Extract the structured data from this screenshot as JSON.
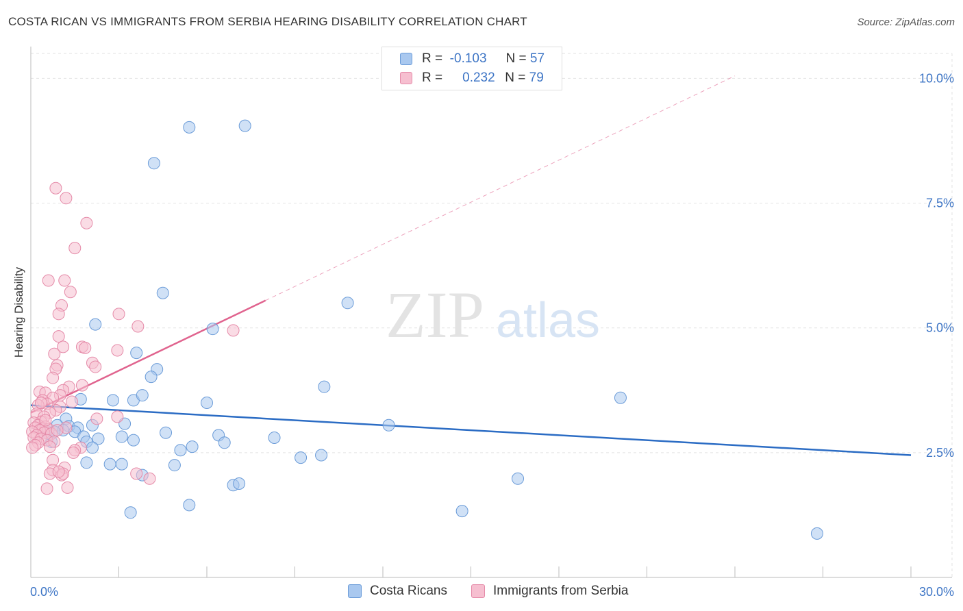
{
  "title": "COSTA RICAN VS IMMIGRANTS FROM SERBIA HEARING DISABILITY CORRELATION CHART",
  "source": "Source: ZipAtlas.com",
  "watermark": {
    "zip": "ZIP",
    "atlas": "atlas"
  },
  "legend_top": [
    {
      "r_label": "R =",
      "r_value": "-0.103",
      "n_label": "N =",
      "n_value": "57",
      "color": "#a9c8ef",
      "stroke": "#6a9bd8"
    },
    {
      "r_label": "R =",
      "r_value": "0.232",
      "n_label": "N =",
      "n_value": "79",
      "color": "#f6bfd0",
      "stroke": "#e58aa8"
    }
  ],
  "chart_data": {
    "type": "scatter",
    "title": "COSTA RICAN VS IMMIGRANTS FROM SERBIA HEARING DISABILITY CORRELATION CHART",
    "ylabel": "Hearing Disability",
    "xlabel": "",
    "xlim": [
      0,
      30
    ],
    "ylim": [
      0,
      10.5
    ],
    "x_tick_labels": [
      {
        "value": 0,
        "label": "0.0%"
      },
      {
        "value": 30,
        "label": "30.0%"
      }
    ],
    "y_tick_labels": [
      {
        "value": 2.5,
        "label": "2.5%"
      },
      {
        "value": 5.0,
        "label": "5.0%"
      },
      {
        "value": 7.5,
        "label": "7.5%"
      },
      {
        "value": 10.0,
        "label": "10.0%"
      }
    ],
    "grid": true,
    "series": [
      {
        "name": "Costa Ricans",
        "color": "#a9c8ef",
        "stroke": "#6a9bd8",
        "line_color": "#2b6cc4",
        "trend": {
          "x0": 0,
          "y0": 3.45,
          "x1": 30,
          "y1": 2.45,
          "style": "solid"
        },
        "points": [
          [
            5.4,
            9.02
          ],
          [
            7.3,
            9.05
          ],
          [
            4.2,
            8.3
          ],
          [
            4.5,
            5.7
          ],
          [
            10.8,
            5.5
          ],
          [
            2.2,
            5.07
          ],
          [
            6.2,
            4.98
          ],
          [
            3.6,
            4.5
          ],
          [
            4.3,
            4.17
          ],
          [
            4.1,
            4.02
          ],
          [
            10.0,
            3.82
          ],
          [
            3.5,
            3.55
          ],
          [
            1.7,
            3.57
          ],
          [
            3.8,
            3.65
          ],
          [
            6.0,
            3.5
          ],
          [
            20.1,
            3.6
          ],
          [
            12.2,
            3.05
          ],
          [
            2.8,
            3.55
          ],
          [
            1.2,
            3.18
          ],
          [
            3.2,
            3.08
          ],
          [
            1.3,
            3.03
          ],
          [
            0.9,
            3.05
          ],
          [
            1.6,
            3.0
          ],
          [
            0.35,
            2.98
          ],
          [
            1.5,
            2.92
          ],
          [
            2.1,
            3.05
          ],
          [
            4.6,
            2.9
          ],
          [
            1.8,
            2.82
          ],
          [
            6.4,
            2.85
          ],
          [
            3.1,
            2.82
          ],
          [
            8.3,
            2.8
          ],
          [
            2.3,
            2.78
          ],
          [
            3.5,
            2.75
          ],
          [
            0.7,
            2.72
          ],
          [
            1.9,
            2.72
          ],
          [
            6.6,
            2.7
          ],
          [
            5.5,
            2.62
          ],
          [
            5.1,
            2.55
          ],
          [
            9.2,
            2.4
          ],
          [
            9.9,
            2.45
          ],
          [
            1.9,
            2.3
          ],
          [
            2.7,
            2.27
          ],
          [
            3.1,
            2.27
          ],
          [
            4.9,
            2.25
          ],
          [
            3.8,
            2.05
          ],
          [
            16.6,
            1.98
          ],
          [
            6.9,
            1.85
          ],
          [
            7.1,
            1.88
          ],
          [
            3.4,
            1.3
          ],
          [
            5.4,
            1.45
          ],
          [
            14.7,
            1.33
          ],
          [
            26.8,
            0.88
          ],
          [
            2.1,
            2.6
          ],
          [
            0.5,
            2.95
          ],
          [
            0.6,
            2.88
          ],
          [
            1.1,
            2.95
          ],
          [
            0.8,
            2.92
          ]
        ]
      },
      {
        "name": "Immigrants from Serbia",
        "color": "#f6bfd0",
        "stroke": "#e58aa8",
        "line_color": "#e0638e",
        "trend": {
          "x0": 0,
          "y0": 3.3,
          "x1": 8.0,
          "y1": 5.55,
          "style": "solid"
        },
        "trend_extended": {
          "x0": 8.0,
          "y0": 5.55,
          "x1": 24.0,
          "y1": 10.05,
          "style": "dashed"
        },
        "points": [
          [
            0.85,
            7.8
          ],
          [
            1.2,
            7.6
          ],
          [
            1.9,
            7.1
          ],
          [
            1.5,
            6.6
          ],
          [
            0.6,
            5.95
          ],
          [
            1.15,
            5.95
          ],
          [
            1.35,
            5.72
          ],
          [
            1.05,
            5.45
          ],
          [
            0.95,
            5.28
          ],
          [
            3.0,
            5.28
          ],
          [
            3.65,
            5.03
          ],
          [
            6.9,
            4.95
          ],
          [
            0.95,
            4.83
          ],
          [
            1.1,
            4.62
          ],
          [
            1.75,
            4.62
          ],
          [
            1.85,
            4.6
          ],
          [
            2.95,
            4.55
          ],
          [
            0.8,
            4.48
          ],
          [
            2.1,
            4.3
          ],
          [
            0.9,
            4.25
          ],
          [
            2.2,
            4.22
          ],
          [
            0.85,
            4.18
          ],
          [
            0.75,
            4.0
          ],
          [
            1.75,
            3.85
          ],
          [
            1.3,
            3.82
          ],
          [
            1.1,
            3.75
          ],
          [
            0.3,
            3.72
          ],
          [
            0.5,
            3.7
          ],
          [
            1.0,
            3.65
          ],
          [
            0.75,
            3.6
          ],
          [
            0.4,
            3.55
          ],
          [
            1.4,
            3.52
          ],
          [
            0.55,
            3.48
          ],
          [
            0.25,
            3.45
          ],
          [
            1.0,
            3.42
          ],
          [
            0.85,
            3.35
          ],
          [
            0.65,
            3.3
          ],
          [
            0.2,
            3.28
          ],
          [
            0.45,
            3.22
          ],
          [
            2.25,
            3.18
          ],
          [
            2.95,
            3.22
          ],
          [
            0.35,
            3.12
          ],
          [
            0.1,
            3.1
          ],
          [
            0.25,
            3.05
          ],
          [
            0.5,
            3.02
          ],
          [
            0.15,
            3.0
          ],
          [
            0.4,
            2.98
          ],
          [
            0.6,
            2.97
          ],
          [
            0.3,
            2.95
          ],
          [
            0.05,
            2.92
          ],
          [
            0.45,
            2.9
          ],
          [
            0.7,
            2.88
          ],
          [
            0.2,
            2.85
          ],
          [
            0.1,
            2.8
          ],
          [
            0.35,
            2.78
          ],
          [
            0.55,
            2.75
          ],
          [
            0.8,
            2.72
          ],
          [
            0.25,
            2.7
          ],
          [
            0.15,
            2.65
          ],
          [
            0.65,
            2.62
          ],
          [
            1.7,
            2.6
          ],
          [
            0.05,
            2.6
          ],
          [
            1.5,
            2.55
          ],
          [
            1.45,
            2.5
          ],
          [
            0.75,
            2.35
          ],
          [
            1.15,
            2.2
          ],
          [
            0.75,
            2.15
          ],
          [
            0.65,
            2.08
          ],
          [
            1.05,
            2.05
          ],
          [
            1.1,
            2.08
          ],
          [
            3.6,
            2.08
          ],
          [
            4.05,
            1.98
          ],
          [
            0.55,
            1.78
          ],
          [
            1.25,
            1.8
          ],
          [
            0.95,
            2.12
          ],
          [
            0.35,
            3.5
          ],
          [
            1.2,
            3.0
          ],
          [
            0.9,
            2.95
          ],
          [
            0.5,
            3.15
          ]
        ]
      }
    ]
  }
}
